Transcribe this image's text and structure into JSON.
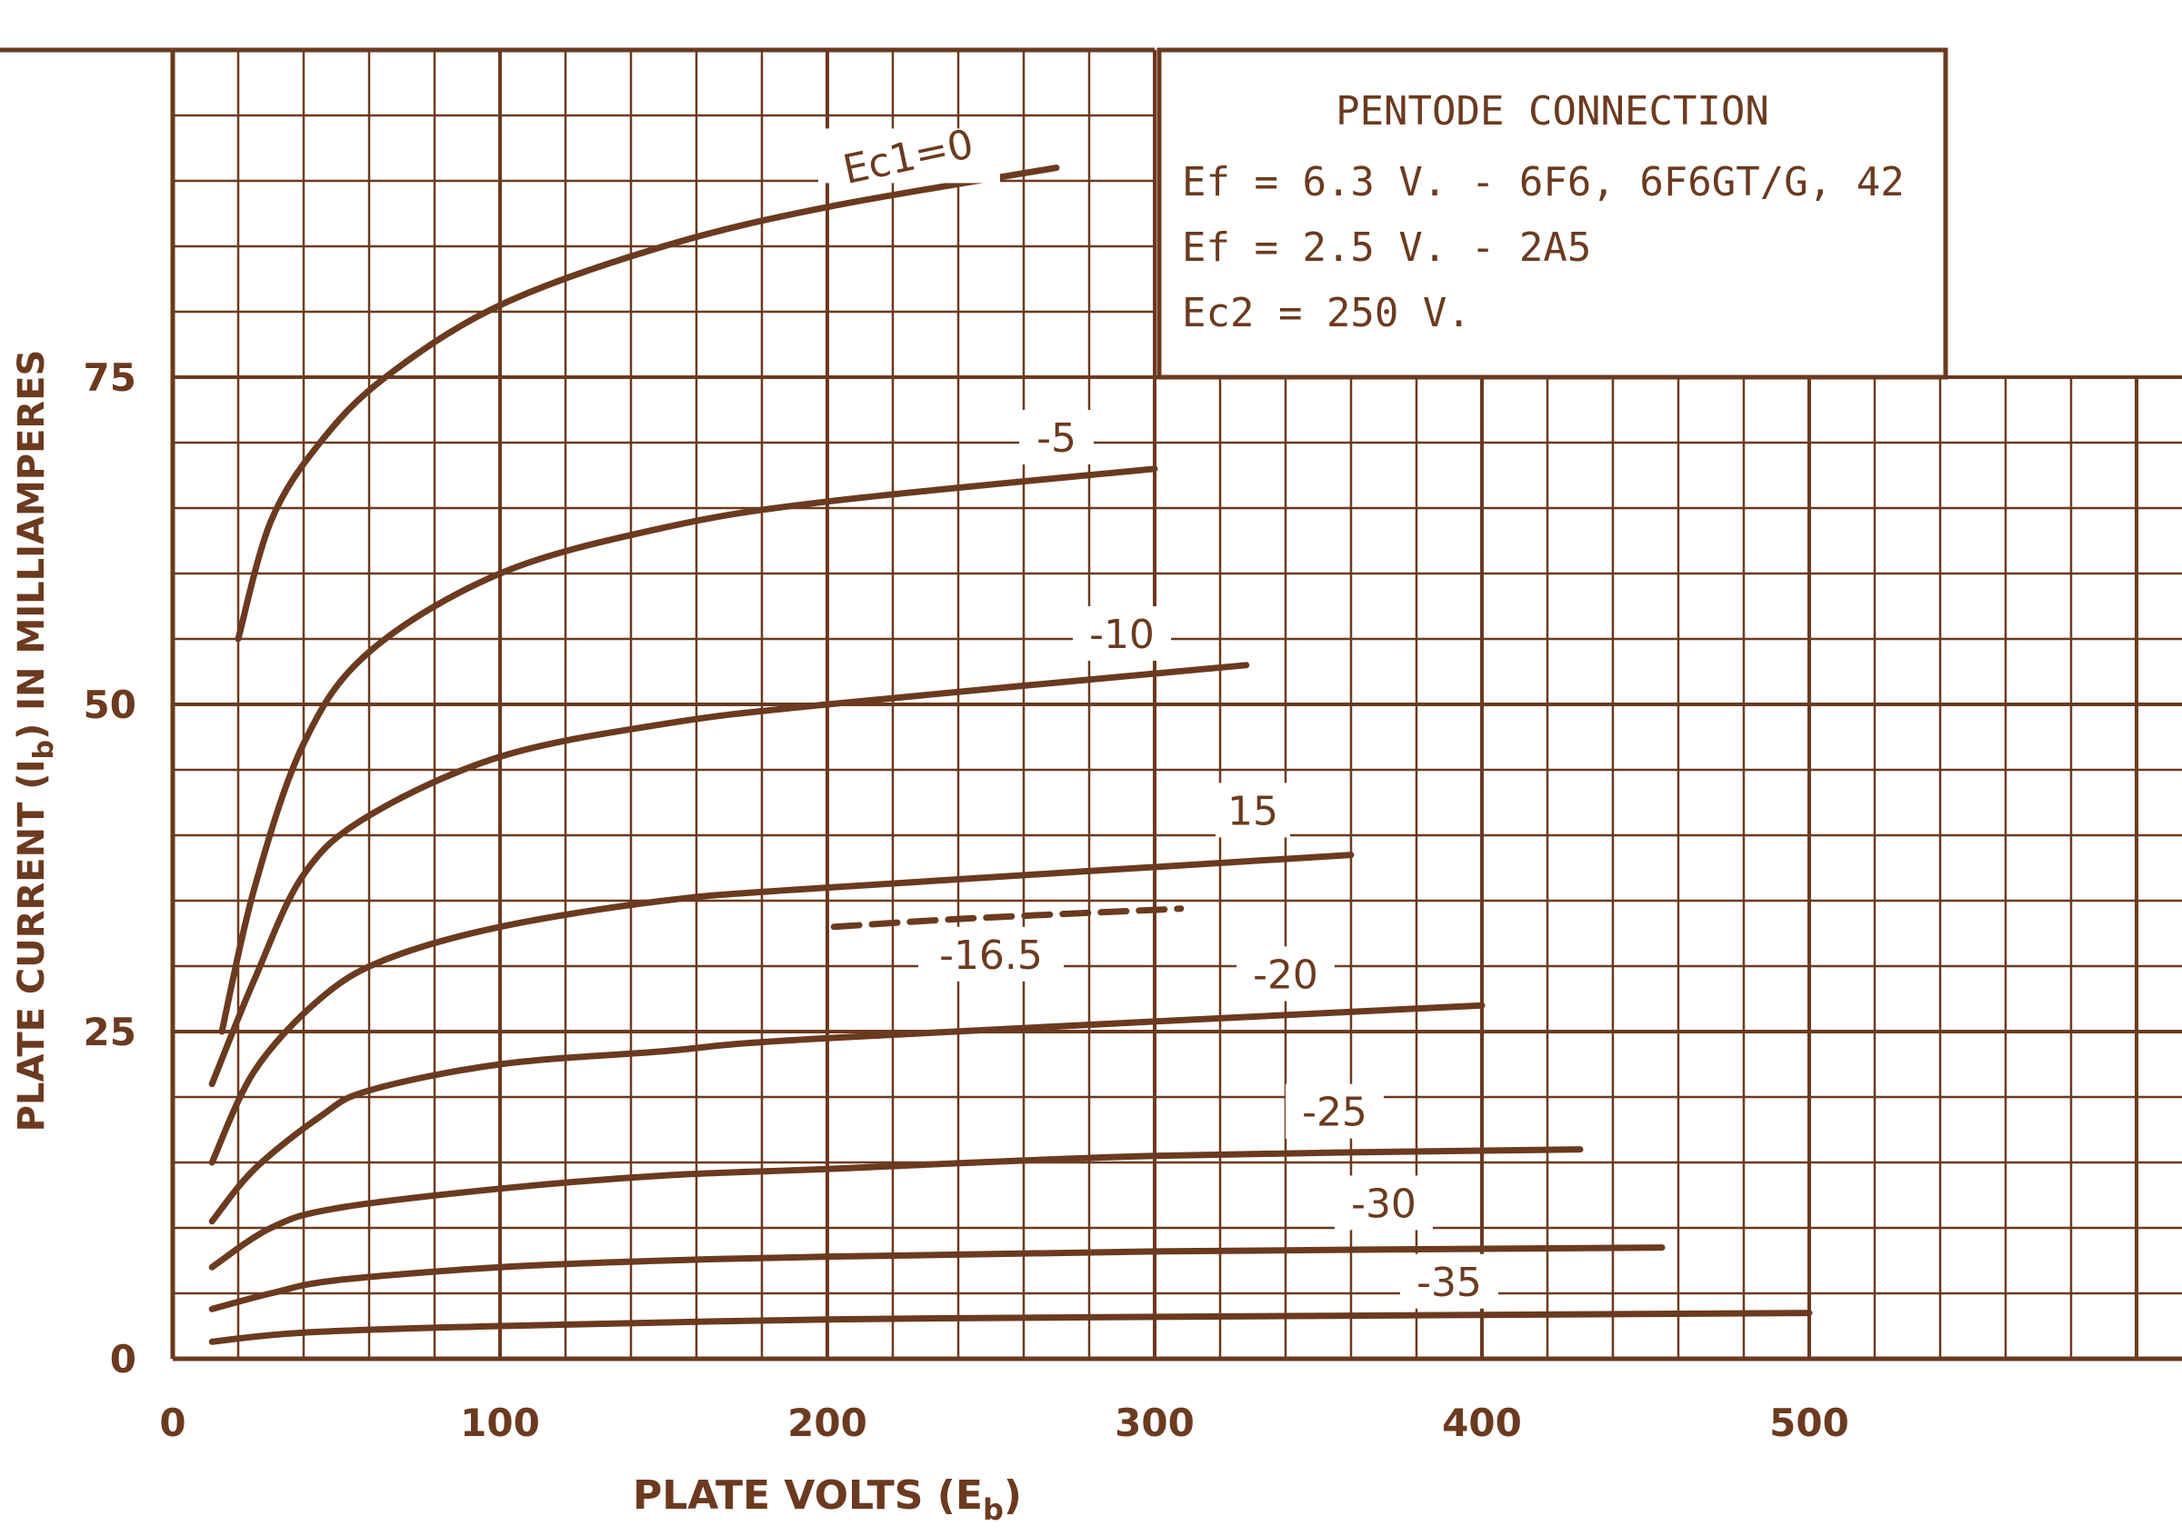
{
  "chart_data": {
    "type": "line",
    "title": "",
    "xlabel": "PLATE VOLTS (Eb)",
    "xlabel_main": "PLATE VOLTS (E",
    "xlabel_sub": "b",
    "xlabel_close": ")",
    "ylabel": "PLATE CURRENT (Ib) IN MILLIAMPERES",
    "ylabel_main": "PLATE CURRENT (I",
    "ylabel_sub": "b",
    "ylabel_tail": ") IN MILLIAMPERES",
    "xlim": [
      0,
      620
    ],
    "ylim": [
      0,
      100
    ],
    "x_ticks": [
      "0",
      "100",
      "200",
      "300",
      "400",
      "500"
    ],
    "x_tick_values": [
      0,
      100,
      200,
      300,
      400,
      500
    ],
    "y_ticks": [
      "0",
      "25",
      "50",
      "75"
    ],
    "y_tick_values": [
      0,
      25,
      50,
      75
    ],
    "grid": true,
    "legend_box": {
      "title": "PENTODE CONNECTION",
      "line1": "Ef = 6.3 V. - 6F6, 6F6GT/G, 42",
      "line2": "Ef = 2.5 V. - 2A5",
      "line3": "Ec2 = 250 V."
    },
    "series": [
      {
        "name": "Ec1=0",
        "label": "Ec1=0",
        "x": [
          20,
          30,
          45,
          65,
          100,
          150,
          200,
          270
        ],
        "y": [
          55,
          64,
          70,
          75,
          80.5,
          85,
          88,
          91
        ]
      },
      {
        "name": "-5",
        "label": "-5",
        "x": [
          15,
          25,
          40,
          60,
          100,
          150,
          200,
          300
        ],
        "y": [
          25,
          36,
          47,
          54,
          60,
          63.5,
          65.5,
          68
        ]
      },
      {
        "name": "-10",
        "label": "-10",
        "x": [
          12,
          25,
          40,
          60,
          100,
          150,
          200,
          328
        ],
        "y": [
          21,
          29,
          37,
          41.5,
          46,
          48.5,
          50,
          53
        ]
      },
      {
        "name": "15",
        "label": "15",
        "x": [
          12,
          25,
          45,
          65,
          100,
          150,
          200,
          360
        ],
        "y": [
          15,
          22,
          27.5,
          30.5,
          33,
          35,
          36,
          38.5
        ]
      },
      {
        "name": "-16.5",
        "label": "-16.5",
        "x": [
          202,
          240,
          300,
          308
        ],
        "y": [
          33,
          33.6,
          34.3,
          34.4
        ],
        "dashed": true
      },
      {
        "name": "-20",
        "label": "-20",
        "x": [
          12,
          25,
          45,
          60,
          100,
          150,
          200,
          400
        ],
        "y": [
          10.5,
          14.5,
          18.5,
          20.5,
          22.5,
          23.5,
          24.5,
          27
        ]
      },
      {
        "name": "-25",
        "label": "-25",
        "x": [
          12,
          30,
          50,
          100,
          150,
          200,
          300,
          430
        ],
        "y": [
          7,
          10,
          11.5,
          13,
          14,
          14.5,
          15.5,
          16
        ]
      },
      {
        "name": "-30",
        "label": "-30",
        "x": [
          12,
          30,
          50,
          100,
          150,
          200,
          300,
          455
        ],
        "y": [
          3.8,
          5,
          6,
          7,
          7.5,
          7.8,
          8.2,
          8.5
        ]
      },
      {
        "name": "-35",
        "label": "-35",
        "x": [
          12,
          40,
          100,
          200,
          300,
          500
        ],
        "y": [
          1.3,
          2,
          2.5,
          3,
          3.2,
          3.5
        ]
      }
    ]
  }
}
